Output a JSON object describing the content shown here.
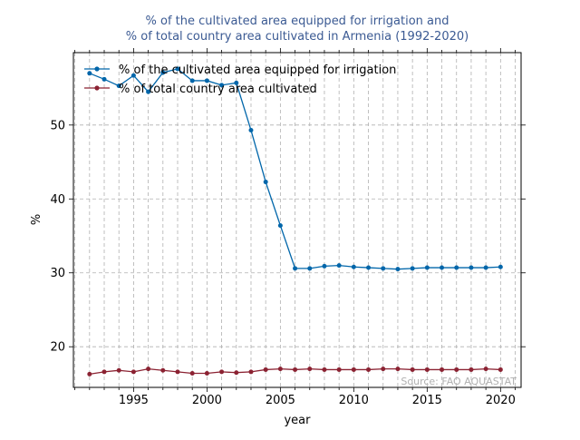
{
  "chart_data": {
    "type": "line",
    "title_lines": [
      "% of the cultivated area equipped for irrigation and",
      "% of total country area cultivated in Armenia (1992-2020)"
    ],
    "xlabel": "year",
    "ylabel": "%",
    "xlim": [
      1990.9,
      2021.4
    ],
    "ylim": [
      14.5,
      59.8
    ],
    "x_ticks": [
      1995,
      2000,
      2005,
      2010,
      2015,
      2020
    ],
    "y_ticks": [
      20,
      30,
      40,
      50
    ],
    "grid": true,
    "legend_position": "upper-left",
    "x": [
      1992,
      1993,
      1994,
      1995,
      1996,
      1997,
      1998,
      1999,
      2000,
      2001,
      2002,
      2003,
      2004,
      2005,
      2006,
      2007,
      2008,
      2009,
      2010,
      2011,
      2012,
      2013,
      2014,
      2015,
      2016,
      2017,
      2018,
      2019,
      2020
    ],
    "series": [
      {
        "name": "% of the cultivated area equipped for irrigation",
        "color": "#0066aa",
        "values": [
          57.0,
          56.2,
          55.3,
          56.7,
          54.5,
          57.1,
          57.6,
          56.0,
          56.0,
          55.4,
          55.7,
          49.3,
          42.3,
          36.4,
          30.6,
          30.6,
          30.9,
          31.0,
          30.8,
          30.7,
          30.6,
          30.5,
          30.6,
          30.7,
          30.7,
          30.7,
          30.7,
          30.7,
          30.8
        ]
      },
      {
        "name": "% of total country area cultivated",
        "color": "#8b2232",
        "values": [
          16.3,
          16.6,
          16.8,
          16.6,
          17.0,
          16.8,
          16.6,
          16.4,
          16.4,
          16.6,
          16.5,
          16.6,
          16.9,
          17.0,
          16.9,
          17.0,
          16.9,
          16.9,
          16.9,
          16.9,
          17.0,
          17.0,
          16.9,
          16.9,
          16.9,
          16.9,
          16.9,
          17.0,
          16.9
        ]
      }
    ],
    "source_text": "Source: FAO AQUASTAT"
  }
}
